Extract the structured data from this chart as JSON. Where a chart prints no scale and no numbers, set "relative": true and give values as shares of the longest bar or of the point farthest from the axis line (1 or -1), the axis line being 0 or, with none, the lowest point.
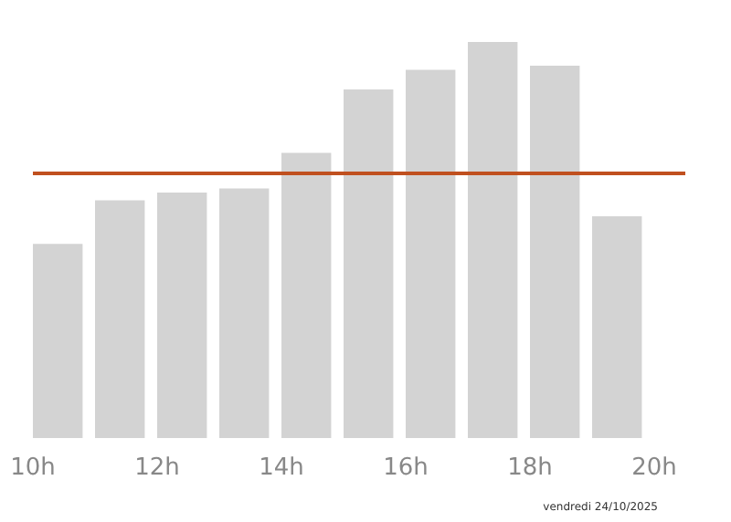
{
  "chart_data": {
    "type": "bar",
    "relative": true,
    "x": [
      10.4,
      11.4,
      12.4,
      13.4,
      14.4,
      15.4,
      16.4,
      17.4,
      18.4,
      19.4
    ],
    "values": [
      0.49,
      0.6,
      0.62,
      0.63,
      0.72,
      0.88,
      0.93,
      1,
      0.94,
      0.56
    ],
    "color": "#d3d3d3",
    "xlim": [
      10,
      20.5
    ],
    "xticks": [
      {
        "value": 10,
        "label": "10h"
      },
      {
        "value": 12,
        "label": "12h"
      },
      {
        "value": 14,
        "label": "14h"
      },
      {
        "value": 16,
        "label": "16h"
      },
      {
        "value": 18,
        "label": "18h"
      },
      {
        "value": 20,
        "label": "20h"
      }
    ],
    "ref_lines": [
      {
        "axis": "y",
        "value": 0.67,
        "color": "#c0501f"
      }
    ],
    "grid": false,
    "annotations": [
      "vendredi 24/10/2025"
    ]
  }
}
